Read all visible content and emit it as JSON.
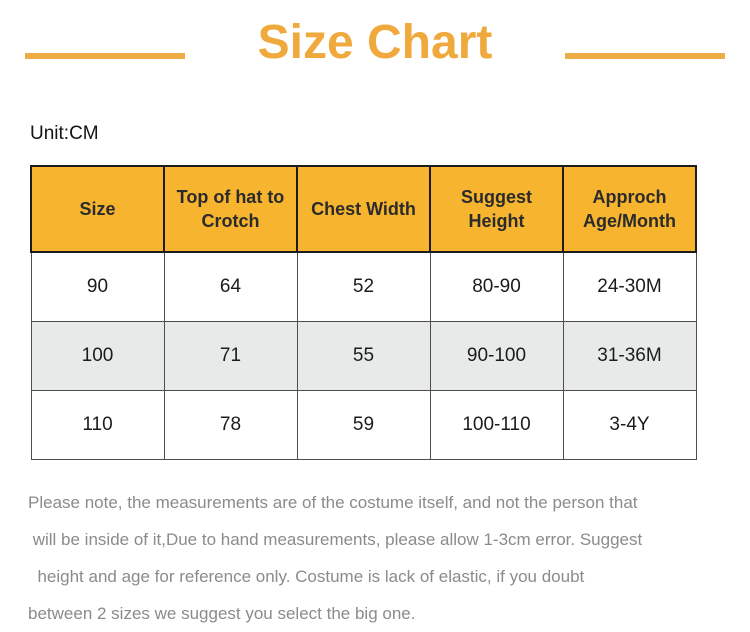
{
  "theme": {
    "accent": "#EFA93C",
    "accent-light": "#F0AC44",
    "header-bg": "#F6B42F",
    "row-alt-bg": "#E8EAEA"
  },
  "page": {
    "title": "Size Chart",
    "unit_label": "Unit:CM"
  },
  "table": {
    "headers": [
      "Size",
      "Top of hat to Crotch",
      "Chest Width",
      "Suggest Height",
      "Approch Age/Month"
    ],
    "rows": [
      [
        "90",
        "64",
        "52",
        "80-90",
        "24-30M"
      ],
      [
        "100",
        "71",
        "55",
        "90-100",
        "31-36M"
      ],
      [
        "110",
        "78",
        "59",
        "100-110",
        "3-4Y"
      ]
    ]
  },
  "note": {
    "lines": [
      "Please note, the measurements are of the costume itself, and not the person that",
      " will be inside of it,Due to hand measurements, please allow 1-3cm error. Suggest",
      "  height and age for reference only. Costume is lack of elastic, if you doubt",
      "between 2 sizes we suggest you select the big one."
    ]
  }
}
